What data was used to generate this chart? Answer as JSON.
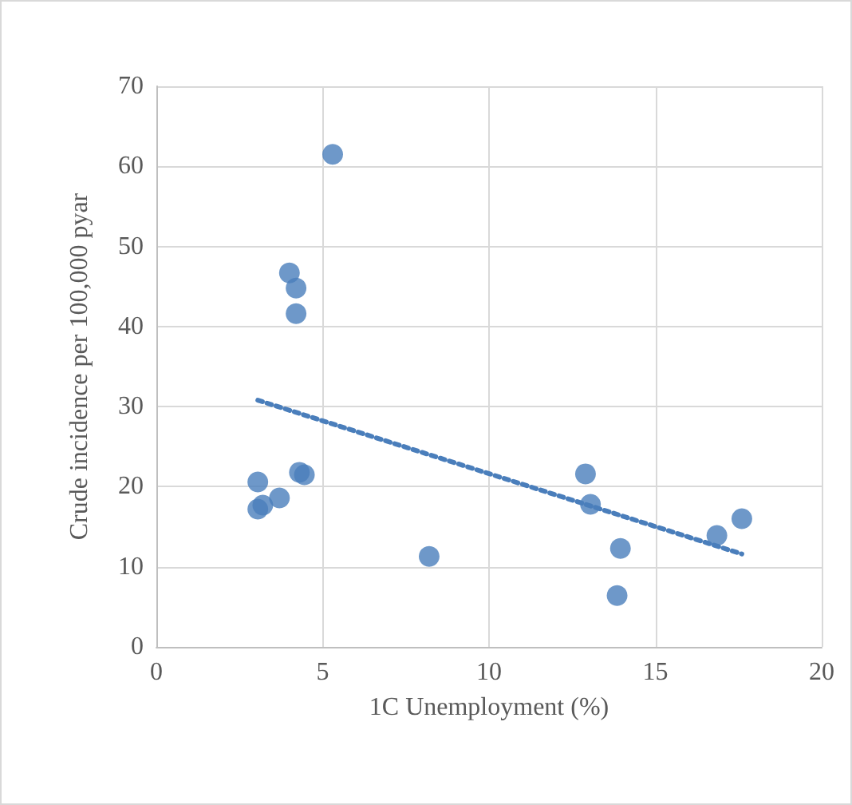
{
  "chart_data": {
    "type": "scatter",
    "xlabel": "1C Unemployment (%)",
    "ylabel": "Crude incidence per 100,000 pyar",
    "xlim": [
      0,
      20
    ],
    "xticks": [
      0,
      5,
      10,
      15,
      20
    ],
    "ylim": [
      0,
      70
    ],
    "yticks": [
      0,
      10,
      20,
      30,
      40,
      50,
      60,
      70
    ],
    "grid": true,
    "marker": "circle",
    "series": [
      {
        "color": "#4a7ebb",
        "x": [
          3.05,
          3.05,
          3.2,
          3.7,
          4.0,
          4.2,
          4.2,
          4.3,
          4.45,
          5.3,
          8.2,
          12.9,
          13.05,
          13.85,
          13.95,
          16.85,
          17.6
        ],
        "values": [
          20.6,
          17.2,
          17.7,
          18.6,
          46.7,
          44.8,
          41.6,
          21.8,
          21.5,
          61.5,
          11.3,
          21.6,
          17.8,
          6.4,
          12.3,
          13.9,
          16.0
        ]
      },
      {
        "type": "line",
        "color": "#4a7ebb",
        "line_style": "dotted",
        "marker": "none",
        "x": [
          3.05,
          17.6
        ],
        "values": [
          30.8,
          11.6
        ]
      }
    ]
  }
}
